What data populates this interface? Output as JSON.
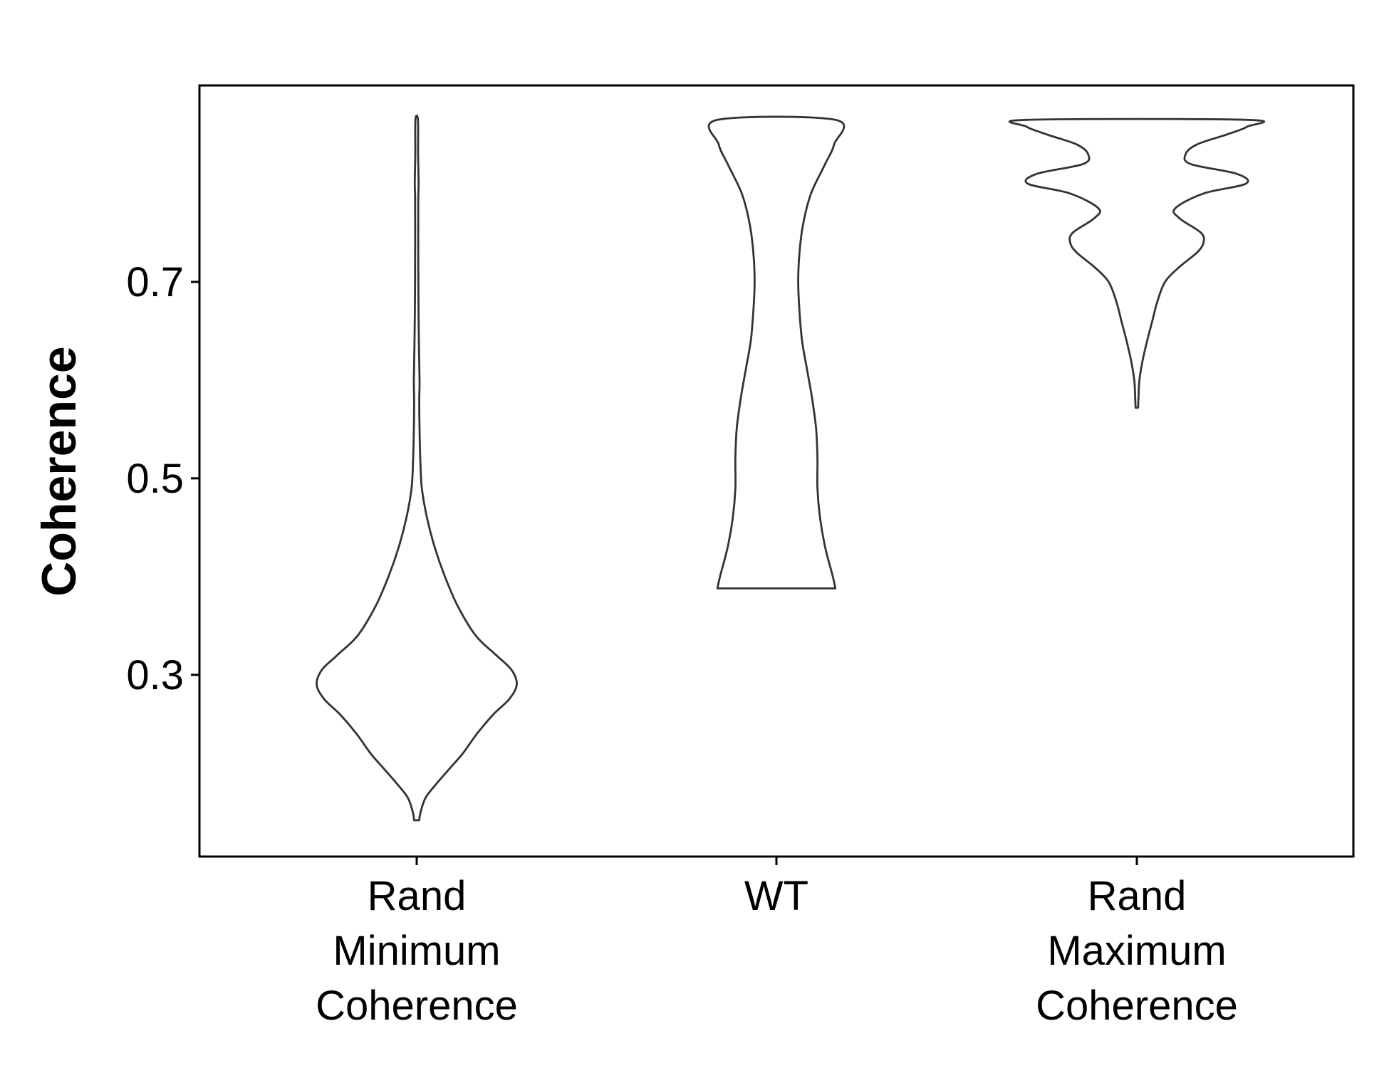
{
  "chart_data": {
    "type": "violin",
    "title": "",
    "xlabel": "",
    "ylabel": "Coherence",
    "categories": [
      [
        "Rand",
        "Minimum",
        "Coherence"
      ],
      [
        "WT"
      ],
      [
        "Rand",
        "Maximum",
        "Coherence"
      ]
    ],
    "ylim": [
      0.115,
      0.9
    ],
    "yticks": [
      0.3,
      0.5,
      0.7
    ],
    "ytick_labels": [
      "0.3",
      "0.5",
      "0.7"
    ],
    "grid": false,
    "line_color": "#333333",
    "violins": [
      {
        "range": [
          0.152,
          0.865
        ],
        "profile": [
          [
            0.152,
            0.02
          ],
          [
            0.16,
            0.03
          ],
          [
            0.175,
            0.07
          ],
          [
            0.19,
            0.16
          ],
          [
            0.205,
            0.26
          ],
          [
            0.22,
            0.36
          ],
          [
            0.24,
            0.47
          ],
          [
            0.26,
            0.6
          ],
          [
            0.275,
            0.72
          ],
          [
            0.29,
            0.78
          ],
          [
            0.305,
            0.74
          ],
          [
            0.32,
            0.62
          ],
          [
            0.34,
            0.46
          ],
          [
            0.37,
            0.32
          ],
          [
            0.4,
            0.22
          ],
          [
            0.43,
            0.14
          ],
          [
            0.46,
            0.08
          ],
          [
            0.49,
            0.04
          ],
          [
            0.52,
            0.028
          ],
          [
            0.55,
            0.022
          ],
          [
            0.58,
            0.02
          ],
          [
            0.6,
            0.022
          ],
          [
            0.65,
            0.016
          ],
          [
            0.7,
            0.013
          ],
          [
            0.78,
            0.012
          ],
          [
            0.8,
            0.015
          ],
          [
            0.83,
            0.011
          ],
          [
            0.865,
            0.01
          ]
        ]
      },
      {
        "range": [
          0.388,
          0.865
        ],
        "profile": [
          [
            0.388,
            0.46
          ],
          [
            0.4,
            0.44
          ],
          [
            0.43,
            0.38
          ],
          [
            0.46,
            0.34
          ],
          [
            0.49,
            0.32
          ],
          [
            0.52,
            0.32
          ],
          [
            0.55,
            0.31
          ],
          [
            0.58,
            0.28
          ],
          [
            0.61,
            0.24
          ],
          [
            0.64,
            0.2
          ],
          [
            0.67,
            0.18
          ],
          [
            0.7,
            0.17
          ],
          [
            0.73,
            0.18
          ],
          [
            0.76,
            0.21
          ],
          [
            0.79,
            0.27
          ],
          [
            0.82,
            0.38
          ],
          [
            0.84,
            0.45
          ],
          [
            0.865,
            0.46
          ]
        ]
      },
      {
        "range": [
          0.572,
          0.865
        ],
        "profile": [
          [
            0.572,
            0.01
          ],
          [
            0.58,
            0.012
          ],
          [
            0.6,
            0.02
          ],
          [
            0.62,
            0.045
          ],
          [
            0.64,
            0.08
          ],
          [
            0.66,
            0.12
          ],
          [
            0.68,
            0.16
          ],
          [
            0.7,
            0.22
          ],
          [
            0.715,
            0.33
          ],
          [
            0.73,
            0.47
          ],
          [
            0.74,
            0.52
          ],
          [
            0.75,
            0.5
          ],
          [
            0.765,
            0.33
          ],
          [
            0.775,
            0.3
          ],
          [
            0.79,
            0.52
          ],
          [
            0.8,
            0.85
          ],
          [
            0.81,
            0.78
          ],
          [
            0.82,
            0.42
          ],
          [
            0.83,
            0.38
          ],
          [
            0.84,
            0.47
          ],
          [
            0.85,
            0.7
          ],
          [
            0.858,
            0.86
          ],
          [
            0.865,
            0.86
          ]
        ]
      }
    ]
  }
}
